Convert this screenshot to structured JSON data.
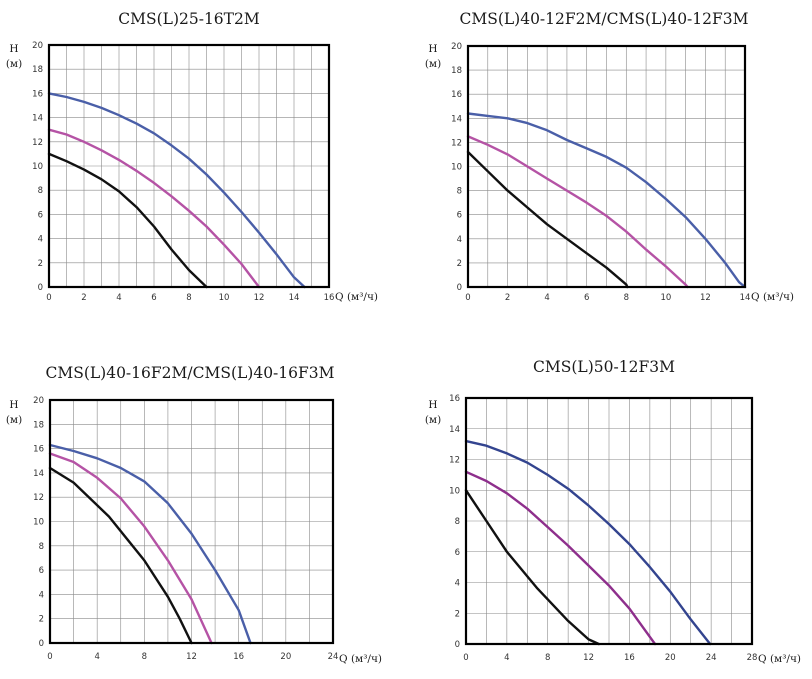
{
  "chart_data": [
    {
      "type": "line",
      "title": "CMS(L)25-16T2M",
      "ylabel": "H\n(м)",
      "xlabel": "Q (м³/ч)",
      "xlim": [
        0,
        16
      ],
      "ylim": [
        0,
        20
      ],
      "x_ticks": [
        0,
        2,
        4,
        6,
        8,
        10,
        12,
        14,
        16
      ],
      "y_ticks": [
        0,
        2,
        4,
        6,
        8,
        10,
        12,
        14,
        16,
        18,
        20
      ],
      "grid": true,
      "series": [
        {
          "color": "#4a5fa8",
          "points": [
            [
              0,
              16
            ],
            [
              1,
              15.7
            ],
            [
              2,
              15.3
            ],
            [
              3,
              14.8
            ],
            [
              4,
              14.2
            ],
            [
              5,
              13.5
            ],
            [
              6,
              12.7
            ],
            [
              7,
              11.7
            ],
            [
              8,
              10.6
            ],
            [
              9,
              9.3
            ],
            [
              10,
              7.8
            ],
            [
              11,
              6.2
            ],
            [
              12,
              4.5
            ],
            [
              13,
              2.7
            ],
            [
              14,
              0.8
            ],
            [
              14.6,
              0
            ]
          ]
        },
        {
          "color": "#b553a5",
          "points": [
            [
              0,
              13
            ],
            [
              1,
              12.6
            ],
            [
              2,
              12
            ],
            [
              3,
              11.3
            ],
            [
              4,
              10.5
            ],
            [
              5,
              9.6
            ],
            [
              6,
              8.6
            ],
            [
              7,
              7.5
            ],
            [
              8,
              6.3
            ],
            [
              9,
              5
            ],
            [
              10,
              3.5
            ],
            [
              11,
              1.9
            ],
            [
              12,
              0
            ]
          ]
        },
        {
          "color": "#111111",
          "points": [
            [
              0,
              11
            ],
            [
              1,
              10.4
            ],
            [
              2,
              9.7
            ],
            [
              3,
              8.9
            ],
            [
              4,
              7.9
            ],
            [
              5,
              6.6
            ],
            [
              6,
              5
            ],
            [
              7,
              3.1
            ],
            [
              8,
              1.4
            ],
            [
              9,
              0
            ]
          ]
        }
      ]
    },
    {
      "type": "line",
      "title": "CMS(L)40-12F2M/CMS(L)40-12F3M",
      "ylabel": "H\n(м)",
      "xlabel": "Q (м³/ч)",
      "xlim": [
        0,
        14
      ],
      "ylim": [
        0,
        20
      ],
      "x_ticks": [
        0,
        2,
        4,
        6,
        8,
        10,
        12,
        14
      ],
      "y_ticks": [
        0,
        2,
        4,
        6,
        8,
        10,
        12,
        14,
        16,
        18,
        20
      ],
      "grid": true,
      "series": [
        {
          "color": "#4a5fa8",
          "points": [
            [
              0,
              14.4
            ],
            [
              1,
              14.2
            ],
            [
              2,
              14
            ],
            [
              3,
              13.6
            ],
            [
              4,
              13
            ],
            [
              5,
              12.2
            ],
            [
              6,
              11.5
            ],
            [
              7,
              10.8
            ],
            [
              8,
              9.9
            ],
            [
              9,
              8.7
            ],
            [
              10,
              7.3
            ],
            [
              11,
              5.8
            ],
            [
              12,
              4
            ],
            [
              13,
              2
            ],
            [
              13.7,
              0.4
            ],
            [
              14,
              0
            ]
          ]
        },
        {
          "color": "#b553a5",
          "points": [
            [
              0,
              12.5
            ],
            [
              1,
              11.8
            ],
            [
              2,
              11
            ],
            [
              3,
              10
            ],
            [
              4,
              9
            ],
            [
              5,
              8
            ],
            [
              6,
              7
            ],
            [
              7,
              5.9
            ],
            [
              8,
              4.6
            ],
            [
              9,
              3.1
            ],
            [
              10,
              1.7
            ],
            [
              11,
              0.2
            ],
            [
              11.1,
              0
            ]
          ]
        },
        {
          "color": "#111111",
          "points": [
            [
              0,
              11.2
            ],
            [
              1,
              9.6
            ],
            [
              2,
              8
            ],
            [
              3,
              6.6
            ],
            [
              4,
              5.2
            ],
            [
              5,
              4
            ],
            [
              6,
              2.8
            ],
            [
              7,
              1.6
            ],
            [
              8,
              0.2
            ],
            [
              8.05,
              0
            ]
          ]
        }
      ]
    },
    {
      "type": "line",
      "title": "CMS(L)40-16F2M/CMS(L)40-16F3M",
      "ylabel": "H\n(м)",
      "xlabel": "Q (м³/ч)",
      "xlim": [
        0,
        24
      ],
      "ylim": [
        0,
        20
      ],
      "x_ticks": [
        0,
        4,
        8,
        12,
        16,
        20,
        24
      ],
      "y_ticks": [
        0,
        2,
        4,
        6,
        8,
        10,
        12,
        14,
        16,
        18,
        20
      ],
      "grid": true,
      "series": [
        {
          "color": "#4a5fa8",
          "points": [
            [
              0,
              16.3
            ],
            [
              2,
              15.8
            ],
            [
              4,
              15.2
            ],
            [
              6,
              14.4
            ],
            [
              8,
              13.3
            ],
            [
              10,
              11.5
            ],
            [
              12,
              9
            ],
            [
              14,
              6
            ],
            [
              16,
              2.7
            ],
            [
              17,
              0
            ]
          ]
        },
        {
          "color": "#b553a5",
          "points": [
            [
              0,
              15.6
            ],
            [
              2,
              14.9
            ],
            [
              4,
              13.6
            ],
            [
              6,
              11.9
            ],
            [
              8,
              9.6
            ],
            [
              10,
              6.8
            ],
            [
              12,
              3.6
            ],
            [
              13.7,
              0
            ]
          ]
        },
        {
          "color": "#111111",
          "points": [
            [
              0,
              14.4
            ],
            [
              2,
              13.2
            ],
            [
              5,
              10.4
            ],
            [
              8,
              6.8
            ],
            [
              10,
              3.8
            ],
            [
              11,
              2
            ],
            [
              12,
              0
            ]
          ]
        }
      ]
    },
    {
      "type": "line",
      "title": "CMS(L)50-12F3M",
      "ylabel": "H\n(м)",
      "xlabel": "Q (м³/ч)",
      "xlim": [
        0,
        28
      ],
      "ylim": [
        0,
        16
      ],
      "x_ticks": [
        0,
        4,
        8,
        12,
        16,
        20,
        24,
        28
      ],
      "y_ticks": [
        0,
        2,
        4,
        6,
        8,
        10,
        12,
        14,
        16
      ],
      "grid": true,
      "series": [
        {
          "color": "#33448f",
          "points": [
            [
              0,
              13.2
            ],
            [
              2,
              12.9
            ],
            [
              4,
              12.4
            ],
            [
              6,
              11.8
            ],
            [
              8,
              11
            ],
            [
              10,
              10.1
            ],
            [
              12,
              9
            ],
            [
              14,
              7.8
            ],
            [
              16,
              6.5
            ],
            [
              18,
              5
            ],
            [
              20,
              3.4
            ],
            [
              22,
              1.6
            ],
            [
              23.9,
              0
            ]
          ]
        },
        {
          "color": "#8e2f8c",
          "points": [
            [
              0,
              11.2
            ],
            [
              2,
              10.6
            ],
            [
              4,
              9.8
            ],
            [
              6,
              8.8
            ],
            [
              8,
              7.6
            ],
            [
              10,
              6.4
            ],
            [
              12,
              5.1
            ],
            [
              14,
              3.8
            ],
            [
              16,
              2.3
            ],
            [
              18.5,
              0
            ]
          ]
        },
        {
          "color": "#111111",
          "points": [
            [
              0,
              10
            ],
            [
              2,
              8
            ],
            [
              4,
              6
            ],
            [
              7,
              3.6
            ],
            [
              10,
              1.5
            ],
            [
              12,
              0.3
            ],
            [
              13,
              0
            ]
          ]
        }
      ]
    }
  ]
}
